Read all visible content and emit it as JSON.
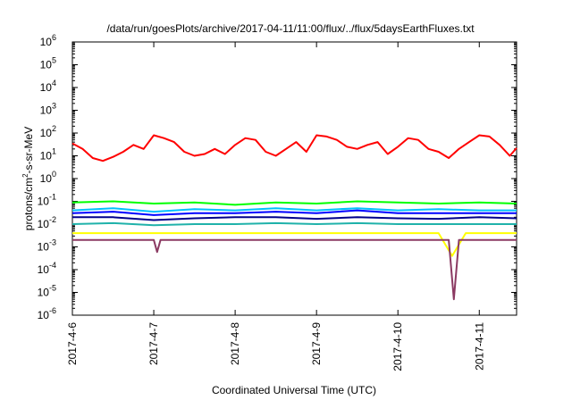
{
  "chart_data": {
    "type": "line",
    "title": "/data/run/goesPlots/archive/2017-04-11/11:00/flux/../flux/5daysEarthFluxes.txt",
    "xlabel": "Coordinated Universal Time (UTC)",
    "ylabel": {
      "prefix": "protons/cm",
      "sup": "2",
      "suffix": "-s-sr-MeV"
    },
    "yscale": "log",
    "ylim": [
      1e-06,
      1000000.0
    ],
    "yticks": [
      {
        "value": 1e-06,
        "base": "10",
        "exp": "-6"
      },
      {
        "value": 1e-05,
        "base": "10",
        "exp": "-5"
      },
      {
        "value": 0.0001,
        "base": "10",
        "exp": "-4"
      },
      {
        "value": 0.001,
        "base": "10",
        "exp": "-3"
      },
      {
        "value": 0.01,
        "base": "10",
        "exp": "-2"
      },
      {
        "value": 0.1,
        "base": "10",
        "exp": "-1"
      },
      {
        "value": 1,
        "base": "10",
        "exp": "0"
      },
      {
        "value": 10,
        "base": "10",
        "exp": "1"
      },
      {
        "value": 100,
        "base": "10",
        "exp": "2"
      },
      {
        "value": 1000,
        "base": "10",
        "exp": "3"
      },
      {
        "value": 10000,
        "base": "10",
        "exp": "4"
      },
      {
        "value": 100000,
        "base": "10",
        "exp": "5"
      },
      {
        "value": 1000000,
        "base": "10",
        "exp": "6"
      }
    ],
    "xlim": [
      "2017-04-06T00:00",
      "2017-04-11T11:00"
    ],
    "xticks": [
      "2017-4-6",
      "2017-4-7",
      "2017-4-8",
      "2017-4-9",
      "2017-4-10",
      "2017-4-11"
    ],
    "xtick_dates": [
      "2017-04-06",
      "2017-04-07",
      "2017-04-08",
      "2017-04-09",
      "2017-04-10",
      "2017-04-11"
    ],
    "grid": false,
    "legend": "none",
    "series": [
      {
        "color": "#ff0000",
        "x": [
          "2017-04-06T00:00",
          "2017-04-06T03:00",
          "2017-04-06T06:00",
          "2017-04-06T09:00",
          "2017-04-06T12:00",
          "2017-04-06T15:00",
          "2017-04-06T18:00",
          "2017-04-06T21:00",
          "2017-04-07T00:00",
          "2017-04-07T03:00",
          "2017-04-07T06:00",
          "2017-04-07T09:00",
          "2017-04-07T12:00",
          "2017-04-07T15:00",
          "2017-04-07T18:00",
          "2017-04-07T21:00",
          "2017-04-08T00:00",
          "2017-04-08T03:00",
          "2017-04-08T06:00",
          "2017-04-08T09:00",
          "2017-04-08T12:00",
          "2017-04-08T15:00",
          "2017-04-08T18:00",
          "2017-04-08T21:00",
          "2017-04-09T00:00",
          "2017-04-09T03:00",
          "2017-04-09T06:00",
          "2017-04-09T09:00",
          "2017-04-09T12:00",
          "2017-04-09T15:00",
          "2017-04-09T18:00",
          "2017-04-09T21:00",
          "2017-04-10T00:00",
          "2017-04-10T03:00",
          "2017-04-10T06:00",
          "2017-04-10T09:00",
          "2017-04-10T12:00",
          "2017-04-10T15:00",
          "2017-04-10T18:00",
          "2017-04-10T21:00",
          "2017-04-11T00:00",
          "2017-04-11T03:00",
          "2017-04-11T06:00",
          "2017-04-11T09:00",
          "2017-04-11T11:00"
        ],
        "values": [
          35,
          20,
          8,
          6,
          9,
          15,
          30,
          20,
          80,
          60,
          40,
          15,
          10,
          12,
          20,
          12,
          30,
          60,
          50,
          15,
          10,
          20,
          40,
          15,
          80,
          70,
          50,
          25,
          20,
          30,
          40,
          12,
          25,
          60,
          50,
          20,
          15,
          8,
          20,
          40,
          80,
          70,
          30,
          10,
          22
        ]
      },
      {
        "color": "#00ff00",
        "x": [
          "2017-04-06T00:00",
          "2017-04-06T12:00",
          "2017-04-07T00:00",
          "2017-04-07T12:00",
          "2017-04-08T00:00",
          "2017-04-08T12:00",
          "2017-04-09T00:00",
          "2017-04-09T12:00",
          "2017-04-10T00:00",
          "2017-04-10T12:00",
          "2017-04-11T00:00",
          "2017-04-11T11:00"
        ],
        "values": [
          0.09,
          0.1,
          0.08,
          0.09,
          0.07,
          0.09,
          0.08,
          0.1,
          0.09,
          0.08,
          0.09,
          0.08
        ]
      },
      {
        "color": "#00bfff",
        "x": [
          "2017-04-06T00:00",
          "2017-04-06T12:00",
          "2017-04-07T00:00",
          "2017-04-07T12:00",
          "2017-04-08T00:00",
          "2017-04-08T12:00",
          "2017-04-09T00:00",
          "2017-04-09T12:00",
          "2017-04-10T00:00",
          "2017-04-10T12:00",
          "2017-04-11T00:00",
          "2017-04-11T11:00"
        ],
        "values": [
          0.04,
          0.05,
          0.035,
          0.045,
          0.04,
          0.05,
          0.04,
          0.05,
          0.04,
          0.045,
          0.04,
          0.04
        ]
      },
      {
        "color": "#0000ff",
        "x": [
          "2017-04-06T00:00",
          "2017-04-06T12:00",
          "2017-04-07T00:00",
          "2017-04-07T12:00",
          "2017-04-08T00:00",
          "2017-04-08T12:00",
          "2017-04-09T00:00",
          "2017-04-09T12:00",
          "2017-04-10T00:00",
          "2017-04-10T12:00",
          "2017-04-11T00:00",
          "2017-04-11T11:00"
        ],
        "values": [
          0.03,
          0.035,
          0.025,
          0.03,
          0.03,
          0.035,
          0.03,
          0.04,
          0.03,
          0.03,
          0.03,
          0.03
        ]
      },
      {
        "color": "#00008b",
        "x": [
          "2017-04-06T00:00",
          "2017-04-06T12:00",
          "2017-04-07T00:00",
          "2017-04-07T12:00",
          "2017-04-08T00:00",
          "2017-04-08T12:00",
          "2017-04-09T00:00",
          "2017-04-09T12:00",
          "2017-04-10T00:00",
          "2017-04-10T12:00",
          "2017-04-11T00:00",
          "2017-04-11T11:00"
        ],
        "values": [
          0.02,
          0.02,
          0.015,
          0.018,
          0.02,
          0.02,
          0.017,
          0.02,
          0.018,
          0.017,
          0.02,
          0.018
        ]
      },
      {
        "color": "#20b2aa",
        "x": [
          "2017-04-06T00:00",
          "2017-04-06T12:00",
          "2017-04-07T00:00",
          "2017-04-07T12:00",
          "2017-04-08T00:00",
          "2017-04-08T12:00",
          "2017-04-09T00:00",
          "2017-04-09T12:00",
          "2017-04-10T00:00",
          "2017-04-10T12:00",
          "2017-04-11T00:00",
          "2017-04-11T11:00"
        ],
        "values": [
          0.01,
          0.011,
          0.009,
          0.01,
          0.01,
          0.011,
          0.01,
          0.011,
          0.01,
          0.01,
          0.01,
          0.01
        ]
      },
      {
        "color": "#ffff00",
        "x": [
          "2017-04-06T00:00",
          "2017-04-06T12:00",
          "2017-04-07T00:00",
          "2017-04-07T12:00",
          "2017-04-08T00:00",
          "2017-04-08T12:00",
          "2017-04-09T00:00",
          "2017-04-09T12:00",
          "2017-04-10T00:00",
          "2017-04-10T12:00",
          "2017-04-10T16:00",
          "2017-04-10T20:00",
          "2017-04-11T00:00",
          "2017-04-11T11:00"
        ],
        "values": [
          0.004,
          0.004,
          0.004,
          0.004,
          0.004,
          0.004,
          0.004,
          0.004,
          0.004,
          0.004,
          0.0004,
          0.004,
          0.004,
          0.004
        ]
      },
      {
        "color": "#8b3a62",
        "x": [
          "2017-04-06T00:00",
          "2017-04-06T12:00",
          "2017-04-07T00:00",
          "2017-04-07T01:00",
          "2017-04-07T02:00",
          "2017-04-07T12:00",
          "2017-04-08T00:00",
          "2017-04-08T12:00",
          "2017-04-09T00:00",
          "2017-04-09T12:00",
          "2017-04-10T00:00",
          "2017-04-10T12:00",
          "2017-04-10T15:00",
          "2017-04-10T16:30",
          "2017-04-10T18:00",
          "2017-04-11T00:00",
          "2017-04-11T11:00"
        ],
        "values": [
          0.002,
          0.002,
          0.002,
          0.0006,
          0.002,
          0.002,
          0.002,
          0.002,
          0.002,
          0.002,
          0.002,
          0.002,
          0.002,
          5e-06,
          0.002,
          0.002,
          0.002
        ]
      }
    ]
  }
}
